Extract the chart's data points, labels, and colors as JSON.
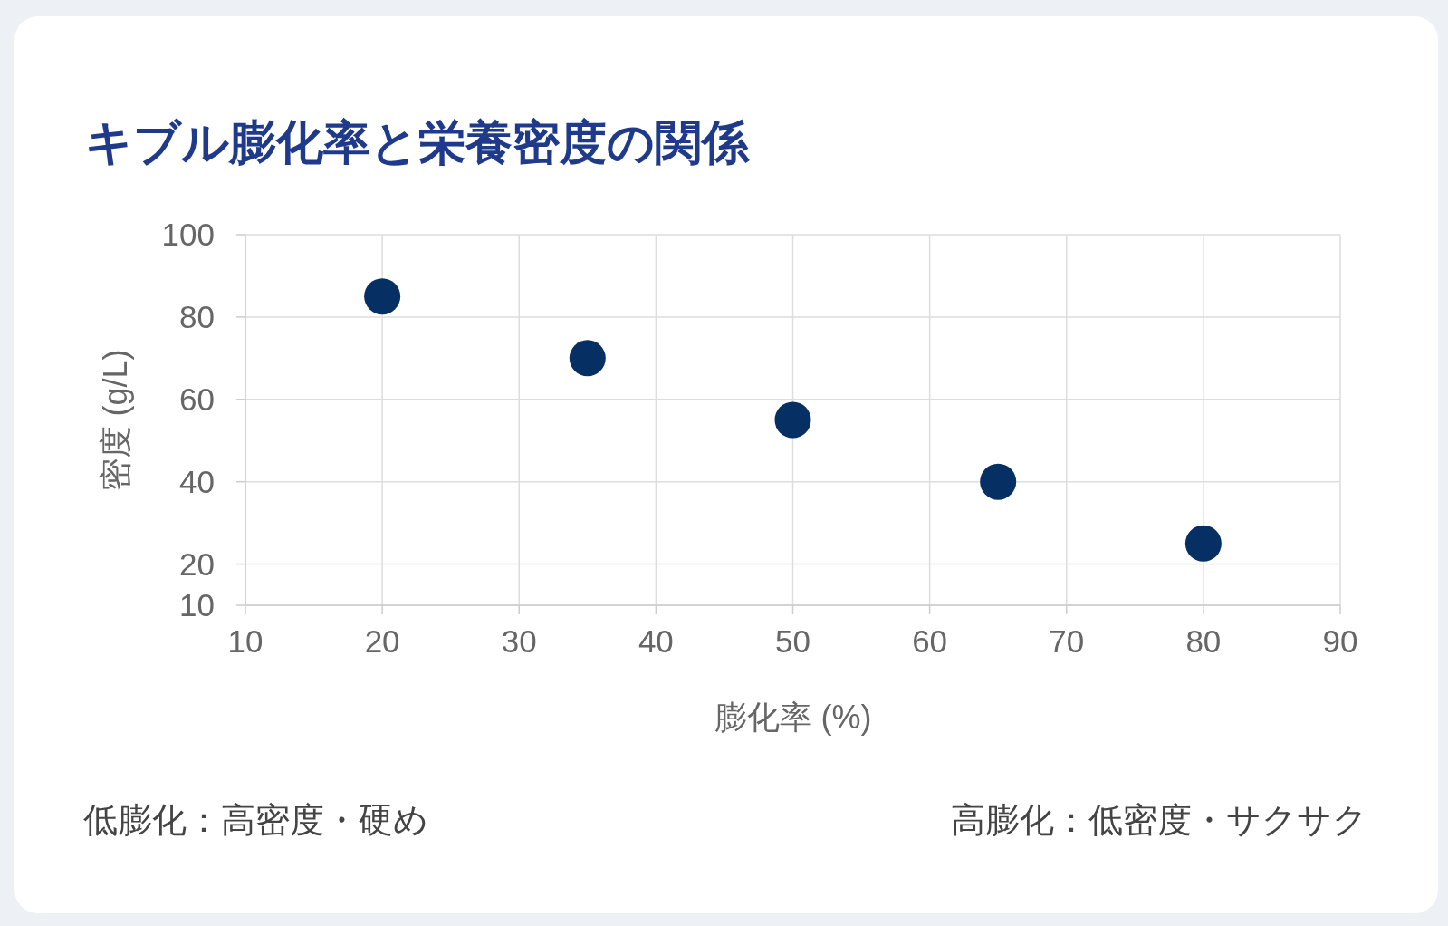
{
  "chart_data": {
    "type": "scatter",
    "title": "キブル膨化率と栄養密度の関係",
    "xlabel": "膨化率 (%)",
    "ylabel": "密度 (g/L)",
    "x": [
      20,
      35,
      50,
      65,
      80
    ],
    "values": [
      85,
      70,
      55,
      40,
      25
    ],
    "color": "#062f63",
    "marker": "circle",
    "xlim": [
      10,
      90
    ],
    "xticks": [
      10,
      20,
      30,
      40,
      50,
      60,
      70,
      80,
      90
    ],
    "ylim": [
      10,
      100
    ],
    "yticks": [
      10,
      20,
      40,
      60,
      80,
      100
    ],
    "grid": true,
    "annotations": [
      "低膨化：高密度・硬め",
      "高膨化：低密度・サクサク"
    ]
  }
}
